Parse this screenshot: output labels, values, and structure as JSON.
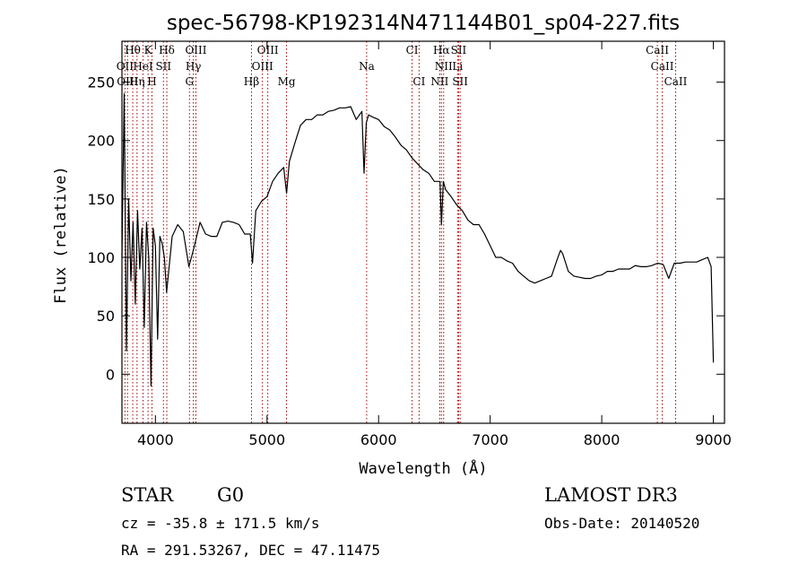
{
  "chart_data": {
    "type": "line",
    "title": "spec-56798-KP192314N471144B01_sp04-227.fits",
    "xlabel": "Wavelength (Å)",
    "ylabel": "Flux (relative)",
    "xlim": [
      3700,
      9100
    ],
    "ylim": [
      -42,
      285
    ],
    "x_ticks": [
      4000,
      5000,
      6000,
      7000,
      8000,
      9000
    ],
    "y_ticks": [
      0,
      50,
      100,
      150,
      200,
      250
    ],
    "line_color": "#000000",
    "marker_color": "#aa0000",
    "series": [
      {
        "x": [
          3700,
          3720,
          3740,
          3760,
          3780,
          3800,
          3820,
          3840,
          3860,
          3880,
          3900,
          3920,
          3940,
          3960,
          3980,
          4000,
          4020,
          4040,
          4060,
          4080,
          4100,
          4150,
          4200,
          4250,
          4300,
          4350,
          4400,
          4450,
          4500,
          4550,
          4600,
          4650,
          4700,
          4750,
          4800,
          4850,
          4870,
          4900,
          4950,
          5000,
          5050,
          5100,
          5150,
          5175,
          5200,
          5250,
          5300,
          5350,
          5400,
          5450,
          5500,
          5550,
          5600,
          5650,
          5700,
          5750,
          5800,
          5850,
          5870,
          5890,
          5910,
          5950,
          6000,
          6050,
          6100,
          6150,
          6200,
          6250,
          6300,
          6350,
          6400,
          6450,
          6500,
          6550,
          6563,
          6580,
          6600,
          6650,
          6700,
          6750,
          6800,
          6850,
          6900,
          6950,
          7000,
          7050,
          7100,
          7150,
          7200,
          7250,
          7300,
          7350,
          7400,
          7450,
          7500,
          7550,
          7600,
          7630,
          7650,
          7700,
          7750,
          7800,
          7850,
          7900,
          7950,
          8000,
          8050,
          8100,
          8150,
          8200,
          8250,
          8300,
          8350,
          8400,
          8450,
          8500,
          8550,
          8600,
          8650,
          8700,
          8750,
          8800,
          8850,
          8900,
          8950,
          8980,
          9000
        ],
        "y": [
          100,
          240,
          20,
          150,
          80,
          130,
          60,
          140,
          90,
          125,
          40,
          130,
          100,
          -10,
          125,
          110,
          30,
          118,
          112,
          100,
          70,
          118,
          128,
          122,
          92,
          110,
          130,
          120,
          118,
          118,
          130,
          131,
          130,
          128,
          120,
          120,
          95,
          140,
          148,
          152,
          165,
          172,
          177,
          155,
          182,
          198,
          213,
          218,
          218,
          222,
          222,
          225,
          226,
          228,
          228,
          229,
          218,
          225,
          172,
          215,
          222,
          220,
          218,
          212,
          209,
          203,
          196,
          192,
          185,
          180,
          175,
          172,
          165,
          165,
          128,
          165,
          158,
          152,
          145,
          140,
          132,
          128,
          128,
          120,
          110,
          100,
          100,
          97,
          95,
          88,
          84,
          80,
          78,
          80,
          82,
          84,
          98,
          106,
          103,
          88,
          84,
          83,
          82,
          82,
          84,
          85,
          88,
          88,
          90,
          90,
          90,
          93,
          92,
          92,
          93,
          95,
          94,
          82,
          95,
          95,
          96,
          96,
          96,
          98,
          100,
          92,
          10
        ]
      }
    ],
    "line_markers": [
      {
        "label": "Hθ",
        "x": 3797,
        "row": 0
      },
      {
        "label": "K",
        "x": 3934,
        "row": 0
      },
      {
        "label": "Hδ",
        "x": 4102,
        "row": 0
      },
      {
        "label": "OIII",
        "x": 4363,
        "row": 0
      },
      {
        "label": "OIII",
        "x": 5007,
        "row": 0
      },
      {
        "label": "CI",
        "x": 6300,
        "row": 0
      },
      {
        "label": "Hα",
        "x": 6563,
        "row": 0
      },
      {
        "label": "SII",
        "x": 6717,
        "row": 0
      },
      {
        "label": "CaII",
        "x": 8498,
        "row": 0
      },
      {
        "label": "OII",
        "x": 3727,
        "row": 1
      },
      {
        "label": "HeI",
        "x": 3889,
        "row": 1
      },
      {
        "label": "SII",
        "x": 4072,
        "row": 1
      },
      {
        "label": "Hγ",
        "x": 4340,
        "row": 1
      },
      {
        "label": "OIII",
        "x": 4959,
        "row": 1
      },
      {
        "label": "Na",
        "x": 5893,
        "row": 1
      },
      {
        "label": "NII",
        "x": 6583,
        "row": 1
      },
      {
        "label": "Li",
        "x": 6708,
        "row": 1
      },
      {
        "label": "CaII",
        "x": 8542,
        "row": 1
      },
      {
        "label": "OIII",
        "x": 3750,
        "row": 2
      },
      {
        "label": "Hη",
        "x": 3835,
        "row": 2
      },
      {
        "label": "H",
        "x": 3969,
        "row": 2
      },
      {
        "label": "G",
        "x": 4305,
        "row": 2
      },
      {
        "label": "Hβ",
        "x": 4861,
        "row": 2
      },
      {
        "label": "Mg",
        "x": 5175,
        "row": 2
      },
      {
        "label": "CI",
        "x": 6363,
        "row": 2
      },
      {
        "label": "NII",
        "x": 6548,
        "row": 2
      },
      {
        "label": "SII",
        "x": 6731,
        "row": 2
      },
      {
        "label": "CaII",
        "x": 8662,
        "row": 2
      }
    ]
  },
  "info": {
    "object_class": "STAR",
    "subclass": "G0",
    "survey": "LAMOST DR3",
    "cz": "cz = -35.8 ± 171.5 km/s",
    "obs_date": "Obs-Date: 20140520",
    "radec": "RA = 291.53267, DEC =  47.11475"
  }
}
